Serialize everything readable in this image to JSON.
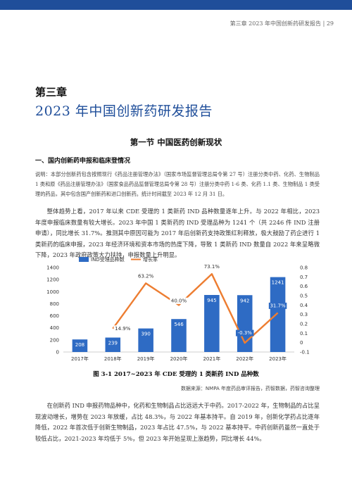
{
  "header": {
    "running_title": "第三章 2023 年中国创新药研发报告 | 29"
  },
  "chapter": {
    "number": "第三章",
    "title": "2023 年中国创新药研发报告"
  },
  "section": {
    "title": "第一节  中国医药创新现状"
  },
  "subsection": {
    "title": "一、国内创新药申报和临床登情况"
  },
  "note": "说明：本部分创新药包含按照现行《药品注册管理办法》（国家市场监督管理总局令第 27 号）注册分类中药、化药、生物制品 1 类和原《药品注册管理办法》（国家食品药品监督管理总局令第 28 号）注册分类中药 1-6 类、化药 1.1 类、生物制品 1 类受理的药品，其中包含国产创新药和进口创新药。统计时间截至 2023 年 12 月 31 日。",
  "paragraphs": [
    "整体趋势上看，2017 年以来 CDE 受理的 1 类新药 IND 品种数量逐年上升。与 2022 年相比，2023 年度申报临床数量有较大增长。2023 年中国 1 类新药的 IND 受理品种为 1241 个（共 2246 件 IND 注册申请），同比增长 31.7%。推测其中原因可能为 2017 年后创新药支持政策红利释放，极大鼓励了药企进行 1 类新药的临床申报，2023 年经济环境和资本市场的热度下降，导致 1 类新药 IND 数量自 2022 年来呈略微下降，2023 年政府政策大力扶持，申报数量上升明显。",
    "在创新药 IND 申报药物品种中，化药和生物制品占比远远大于中药。2017-2022 年，生物制品的占比呈现波动增长，增势在 2023 年放缓，占比 48.3%，与 2022 年基本持平。自 2019 年，创新化学药占比逐年降低，2022 年首次低于创新生物制品，2023 年占比 47.5%，与 2022 基本持平。中药创新药虽然一直处于较低占比，2021-2023 年均低于 5%，但 2023 年开始呈现上涨趋势，同比增长 44%。"
  ],
  "figure": {
    "caption": "图 3-1   2017~2023 年 CDE 受理的 1 类新药 IND 品种数",
    "source": "数据来源：NMPA 年度药品审评报告，药智数据，药智咨询整理"
  },
  "chart_data": {
    "type": "bar",
    "categories": [
      "2017年",
      "2018年",
      "2019年",
      "2020年",
      "2021年",
      "2022年",
      "2023年"
    ],
    "series": [
      {
        "name": "IND受理品种数",
        "type": "bar",
        "axis": "left",
        "values": [
          208,
          239,
          390,
          546,
          945,
          942,
          1241
        ],
        "labels": [
          "208",
          "239",
          "390",
          "546",
          "945",
          "942",
          "1241"
        ]
      },
      {
        "name": "增长率",
        "type": "line",
        "axis": "right",
        "values": [
          null,
          0.149,
          0.632,
          0.4,
          0.731,
          -0.003,
          0.317
        ],
        "labels": [
          "",
          "14.9%",
          "63.2%",
          "40.0%",
          "73.1%",
          "-0.3%",
          "31.7%"
        ]
      }
    ],
    "y_left": {
      "min": 0,
      "max": 1400,
      "ticks": [
        "0",
        "200",
        "400",
        "600",
        "800",
        "1000",
        "1200",
        "1400"
      ]
    },
    "y_right": {
      "min": -0.1,
      "max": 0.8,
      "ticks": [
        "-0.1",
        "0",
        "0.1",
        "0.2",
        "0.3",
        "0.4",
        "0.5",
        "0.6",
        "0.7",
        "0.8"
      ]
    },
    "legend_position": "top-left",
    "grid": false,
    "colors": {
      "bar": "#2e6bc4",
      "line": "#ed7d31"
    }
  }
}
